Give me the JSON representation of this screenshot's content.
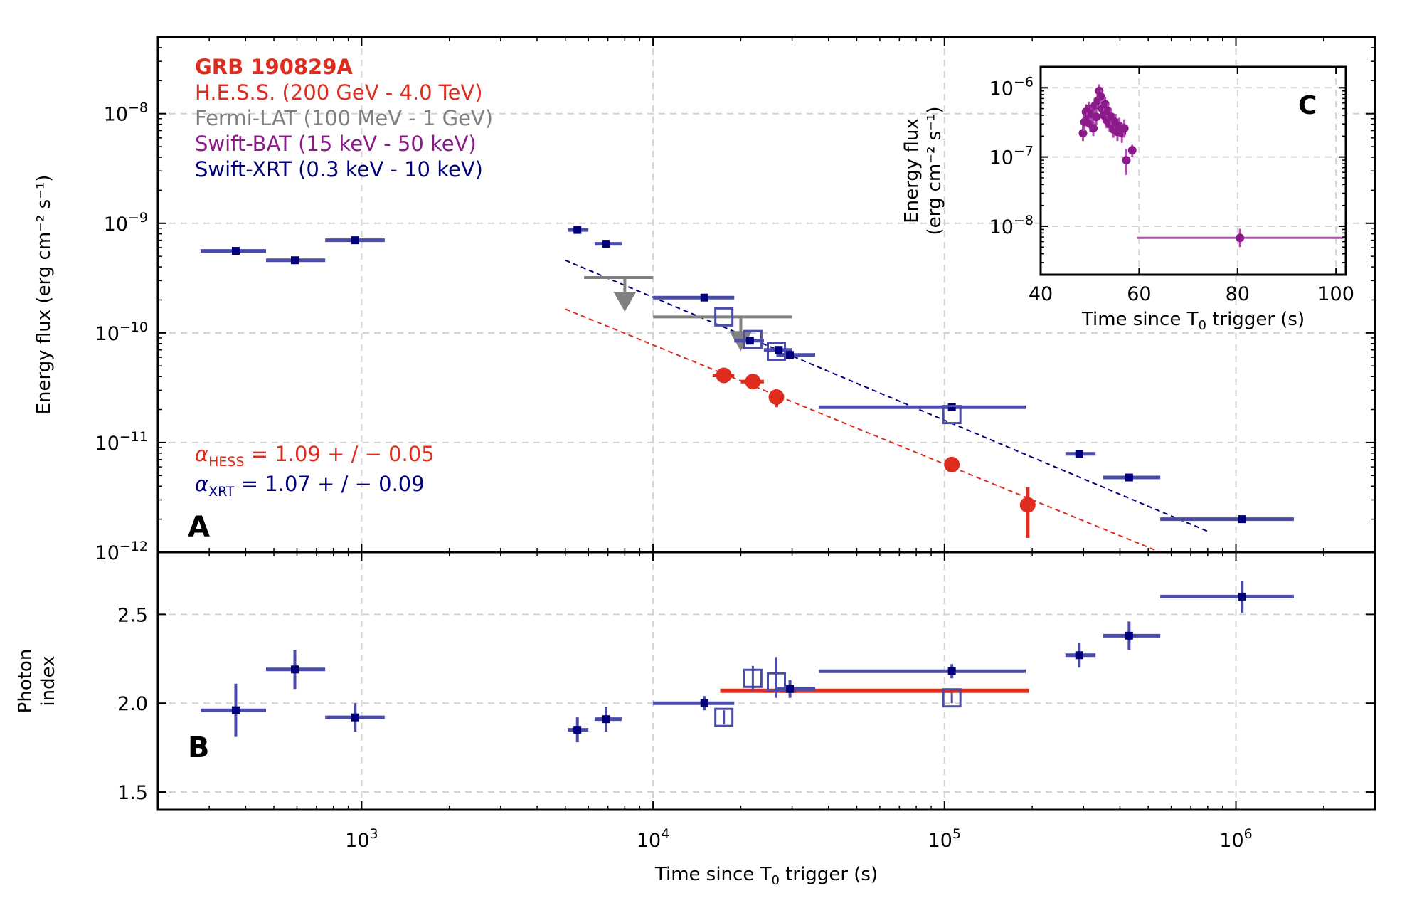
{
  "colors": {
    "hess": "#de2d1f",
    "fermi": "#808080",
    "bat": "#8b1a8b",
    "bat_inset_line": "#b04cb0",
    "xrt_marker": "#00007a",
    "xrt_bar": "#4b4ba8",
    "xrt_fit": "#00007a",
    "grid": "#d3d3d3"
  },
  "chart_data": [
    {
      "id": "A",
      "panel_label": "A",
      "type": "scatter",
      "xscale": "log",
      "yscale": "log",
      "xlim": [
        200,
        3000000
      ],
      "ylim": [
        1e-12,
        5e-08
      ],
      "ylabel": "Energy flux (erg cm⁻² s⁻¹)",
      "xtick_values": [
        1000,
        10000,
        100000,
        1000000
      ],
      "ytick_values": [
        1e-12,
        1e-11,
        1e-10,
        1e-09,
        1e-08
      ],
      "tick_labels": {
        "base": "10",
        "x_exponents": [
          "3",
          "4",
          "5",
          "6"
        ],
        "y_exponents": [
          "−12",
          "−11",
          "−10",
          "−9",
          "−8"
        ]
      },
      "legend": {
        "placement": "top-left",
        "title": "GRB 190829A",
        "entries": [
          {
            "label": "H.E.S.S. (200 GeV - 4.0 TeV)",
            "color": "#de2d1f"
          },
          {
            "label": "Fermi-LAT (100 MeV - 1 GeV)",
            "color": "#808080"
          },
          {
            "label": "Swift-BAT (15 keV - 50 keV)",
            "color": "#8b1a8b"
          },
          {
            "label": "Swift-XRT (0.3 keV - 10 keV)",
            "color": "#00007a"
          }
        ]
      },
      "fit_annotations": [
        {
          "symbol": "α",
          "subscript": "HESS",
          "text": " = 1.09 + / − 0.05",
          "color": "#de2d1f"
        },
        {
          "symbol": "α",
          "subscript": "XRT",
          "text": " = 1.07 + / − 0.09",
          "color": "#00007a"
        }
      ],
      "series": [
        {
          "name": "Swift-XRT",
          "marker": "square",
          "points": [
            {
              "x": 370,
              "y": 5.6e-10,
              "x_lo": 280,
              "x_hi": 470
            },
            {
              "x": 590,
              "y": 4.6e-10,
              "x_lo": 470,
              "x_hi": 750
            },
            {
              "x": 950,
              "y": 7e-10,
              "x_lo": 750,
              "x_hi": 1200
            },
            {
              "x": 5500,
              "y": 8.7e-10,
              "x_lo": 5100,
              "x_hi": 6000
            },
            {
              "x": 6900,
              "y": 6.5e-10,
              "x_lo": 6300,
              "x_hi": 7800
            },
            {
              "x": 15000,
              "y": 2.1e-10,
              "x_lo": 10000,
              "x_hi": 19000
            },
            {
              "x": 21500,
              "y": 8.5e-11,
              "x_lo": 19000,
              "x_hi": 24000
            },
            {
              "x": 27000,
              "y": 7e-11,
              "x_lo": 24000,
              "x_hi": 30000
            },
            {
              "x": 29500,
              "y": 6.3e-11,
              "x_lo": 26500,
              "x_hi": 36000
            },
            {
              "x": 106000,
              "y": 2.1e-11,
              "x_lo": 37000,
              "x_hi": 190000
            },
            {
              "x": 290000,
              "y": 7.9e-12,
              "x_lo": 260000,
              "x_hi": 330000
            },
            {
              "x": 430000,
              "y": 4.8e-12,
              "x_lo": 350000,
              "x_hi": 550000
            },
            {
              "x": 1050000,
              "y": 2e-12,
              "x_lo": 550000,
              "x_hi": 1580000
            }
          ]
        },
        {
          "name": "Swift-XRT (open)",
          "marker": "open-square",
          "points": [
            {
              "x": 17500,
              "y": 1.4e-10
            },
            {
              "x": 22000,
              "y": 8.7e-11
            },
            {
              "x": 26500,
              "y": 6.8e-11
            },
            {
              "x": 106000,
              "y": 1.8e-11
            }
          ]
        },
        {
          "name": "H.E.S.S.",
          "marker": "circle",
          "points": [
            {
              "x": 17500,
              "y": 4.1e-11,
              "x_lo": 16000,
              "x_hi": 19000,
              "y_lo": 3.5e-11,
              "y_hi": 4.7e-11
            },
            {
              "x": 22000,
              "y": 3.6e-11,
              "x_lo": 20000,
              "x_hi": 24000,
              "y_lo": 3.1e-11,
              "y_hi": 4.1e-11
            },
            {
              "x": 26500,
              "y": 2.6e-11,
              "x_lo": 25500,
              "x_hi": 27500,
              "y_lo": 2.1e-11,
              "y_hi": 3.1e-11
            },
            {
              "x": 106000,
              "y": 6.3e-12,
              "x_lo": 103000,
              "x_hi": 110000,
              "y_lo": 5.6e-12,
              "y_hi": 7e-12
            },
            {
              "x": 193000,
              "y": 2.7e-12,
              "x_lo": 190000,
              "x_hi": 196000,
              "y_lo": 1.35e-12,
              "y_hi": 3.9e-12
            }
          ]
        },
        {
          "name": "Fermi-LAT",
          "marker": "upper-limit",
          "points": [
            {
              "x": 8000,
              "y": 3.2e-10,
              "x_lo": 5800,
              "x_hi": 10000
            },
            {
              "x": 20000,
              "y": 1.4e-10,
              "x_lo": 10000,
              "x_hi": 30000
            }
          ]
        },
        {
          "name": "XRT fit",
          "type": "line",
          "style": "dashed",
          "x": [
            5000,
            800000
          ],
          "y": [
            4.6e-10,
            1.55e-12
          ]
        },
        {
          "name": "HESS fit",
          "type": "line",
          "style": "dashed",
          "x": [
            5000,
            550000
          ],
          "y": [
            1.65e-10,
            1e-12
          ]
        }
      ]
    },
    {
      "id": "B",
      "panel_label": "B",
      "type": "scatter",
      "xscale": "log",
      "xlim": [
        200,
        3000000
      ],
      "ylim": [
        1.4,
        2.85
      ],
      "xlabel": "Time since T₀ trigger (s)",
      "xlabel_parts": {
        "pre": "Time since T",
        "sub": "0",
        "post": " trigger (s)"
      },
      "ylabel": "Photon index",
      "ylabel_lines": [
        "Photon",
        "index"
      ],
      "ytick_values": [
        1.5,
        2.0,
        2.5
      ],
      "ytick_labels": [
        "1.5",
        "2.0",
        "2.5"
      ],
      "series": [
        {
          "name": "Swift-XRT",
          "marker": "square",
          "points": [
            {
              "x": 370,
              "y": 1.96,
              "x_lo": 280,
              "x_hi": 470,
              "y_lo": 1.81,
              "y_hi": 2.11
            },
            {
              "x": 590,
              "y": 2.19,
              "x_lo": 470,
              "x_hi": 750,
              "y_lo": 2.08,
              "y_hi": 2.3
            },
            {
              "x": 950,
              "y": 1.92,
              "x_lo": 750,
              "x_hi": 1200,
              "y_lo": 1.84,
              "y_hi": 2.0
            },
            {
              "x": 5500,
              "y": 1.85,
              "x_lo": 5100,
              "x_hi": 6000,
              "y_lo": 1.78,
              "y_hi": 1.92
            },
            {
              "x": 6900,
              "y": 1.91,
              "x_lo": 6300,
              "x_hi": 7800,
              "y_lo": 1.84,
              "y_hi": 1.98
            },
            {
              "x": 15000,
              "y": 2.0,
              "x_lo": 10000,
              "x_hi": 19000,
              "y_lo": 1.96,
              "y_hi": 2.04
            },
            {
              "x": 29500,
              "y": 2.08,
              "x_lo": 26500,
              "x_hi": 36000,
              "y_lo": 2.03,
              "y_hi": 2.13
            },
            {
              "x": 106000,
              "y": 2.18,
              "x_lo": 37000,
              "x_hi": 190000,
              "y_lo": 2.14,
              "y_hi": 2.22
            },
            {
              "x": 290000,
              "y": 2.27,
              "x_lo": 260000,
              "x_hi": 330000,
              "y_lo": 2.2,
              "y_hi": 2.34
            },
            {
              "x": 430000,
              "y": 2.38,
              "x_lo": 350000,
              "x_hi": 550000,
              "y_lo": 2.3,
              "y_hi": 2.46
            },
            {
              "x": 1050000,
              "y": 2.6,
              "x_lo": 550000,
              "x_hi": 1580000,
              "y_lo": 2.51,
              "y_hi": 2.69
            }
          ]
        },
        {
          "name": "Swift-XRT (open)",
          "marker": "open-square",
          "points": [
            {
              "x": 17500,
              "y": 1.92,
              "y_lo": 1.88,
              "y_hi": 1.96
            },
            {
              "x": 22000,
              "y": 2.14,
              "y_lo": 2.07,
              "y_hi": 2.21
            },
            {
              "x": 26500,
              "y": 2.12,
              "y_lo": 2.03,
              "y_hi": 2.26
            },
            {
              "x": 106000,
              "y": 2.03,
              "y_lo": 2.0,
              "y_hi": 2.06
            }
          ]
        },
        {
          "name": "H.E.S.S.",
          "type": "hline",
          "y": 2.07,
          "x_lo": 17000,
          "x_hi": 195000
        }
      ]
    },
    {
      "id": "C",
      "panel_label": "C",
      "type": "scatter",
      "xscale": "linear",
      "yscale": "log",
      "xlim": [
        40,
        102
      ],
      "ylim": [
        2e-09,
        2e-06
      ],
      "xlabel": "Time since T₀ trigger (s)",
      "xlabel_parts": {
        "pre": "Time since T",
        "sub": "0",
        "post": " trigger (s)"
      },
      "ylabel_lines": [
        "Energy flux",
        "(erg cm⁻² s⁻¹)"
      ],
      "xtick_values": [
        40,
        60,
        80,
        100
      ],
      "xtick_labels": [
        "40",
        "60",
        "80",
        "100"
      ],
      "ytick_values": [
        1e-08,
        1e-07,
        1e-06
      ],
      "ytick_exponents": [
        "−8",
        "−7",
        "−6"
      ],
      "series": [
        {
          "name": "Swift-BAT",
          "marker": "circle",
          "points": [
            {
              "x": 48.6,
              "y": 2.2e-07,
              "y_lo": 1.7e-07,
              "y_hi": 2.8e-07
            },
            {
              "x": 48.9,
              "y": 3.2e-07,
              "y_lo": 2.4e-07,
              "y_hi": 4.2e-07
            },
            {
              "x": 49.2,
              "y": 4.5e-07,
              "y_lo": 3.5e-07,
              "y_hi": 5.8e-07
            },
            {
              "x": 49.5,
              "y": 3.5e-07,
              "y_lo": 2.7e-07,
              "y_hi": 4.5e-07
            },
            {
              "x": 49.8,
              "y": 5e-07,
              "y_lo": 3.9e-07,
              "y_hi": 6.3e-07
            },
            {
              "x": 50.1,
              "y": 3e-07,
              "y_lo": 2.3e-07,
              "y_hi": 3.9e-07
            },
            {
              "x": 50.4,
              "y": 4.2e-07,
              "y_lo": 3.3e-07,
              "y_hi": 5.4e-07
            },
            {
              "x": 50.7,
              "y": 2.6e-07,
              "y_lo": 2e-07,
              "y_hi": 3.4e-07
            },
            {
              "x": 51.0,
              "y": 5.5e-07,
              "y_lo": 4.3e-07,
              "y_hi": 7e-07
            },
            {
              "x": 51.3,
              "y": 3.8e-07,
              "y_lo": 2.9e-07,
              "y_hi": 4.9e-07
            },
            {
              "x": 51.6,
              "y": 6.5e-07,
              "y_lo": 5.1e-07,
              "y_hi": 8.2e-07
            },
            {
              "x": 51.9,
              "y": 9e-07,
              "y_lo": 7.2e-07,
              "y_hi": 1.12e-06
            },
            {
              "x": 52.2,
              "y": 7.5e-07,
              "y_lo": 5.9e-07,
              "y_hi": 9.4e-07
            },
            {
              "x": 52.5,
              "y": 5e-07,
              "y_lo": 3.9e-07,
              "y_hi": 6.3e-07
            },
            {
              "x": 52.8,
              "y": 4e-07,
              "y_lo": 3.1e-07,
              "y_hi": 5.1e-07
            },
            {
              "x": 53.1,
              "y": 5.8e-07,
              "y_lo": 4.5e-07,
              "y_hi": 7.3e-07
            },
            {
              "x": 53.4,
              "y": 3.4e-07,
              "y_lo": 2.6e-07,
              "y_hi": 4.4e-07
            },
            {
              "x": 53.7,
              "y": 4.6e-07,
              "y_lo": 3.6e-07,
              "y_hi": 5.9e-07
            },
            {
              "x": 54.0,
              "y": 3e-07,
              "y_lo": 2.3e-07,
              "y_hi": 3.9e-07
            },
            {
              "x": 54.4,
              "y": 3.8e-07,
              "y_lo": 2.9e-07,
              "y_hi": 4.9e-07
            },
            {
              "x": 54.8,
              "y": 2.5e-07,
              "y_lo": 1.9e-07,
              "y_hi": 3.3e-07
            },
            {
              "x": 55.2,
              "y": 3.2e-07,
              "y_lo": 2.4e-07,
              "y_hi": 4.2e-07
            },
            {
              "x": 55.6,
              "y": 2.3e-07,
              "y_lo": 1.7e-07,
              "y_hi": 3.1e-07
            },
            {
              "x": 56.0,
              "y": 2.8e-07,
              "y_lo": 2.1e-07,
              "y_hi": 3.7e-07
            },
            {
              "x": 56.5,
              "y": 2.2e-07,
              "y_lo": 1.6e-07,
              "y_hi": 3e-07
            },
            {
              "x": 57.0,
              "y": 2.6e-07,
              "y_lo": 1.9e-07,
              "y_hi": 3.5e-07
            },
            {
              "x": 57.4,
              "y": 9e-08,
              "y_lo": 5.5e-08,
              "y_hi": 1.3e-07
            },
            {
              "x": 58.6,
              "y": 1.25e-07,
              "y_lo": 1e-07,
              "y_hi": 1.5e-07
            },
            {
              "x": 80.5,
              "y": 6.8e-09,
              "x_lo": 59.5,
              "x_hi": 101.5,
              "y_lo": 5e-09,
              "y_hi": 9.2e-09
            }
          ]
        }
      ]
    }
  ]
}
